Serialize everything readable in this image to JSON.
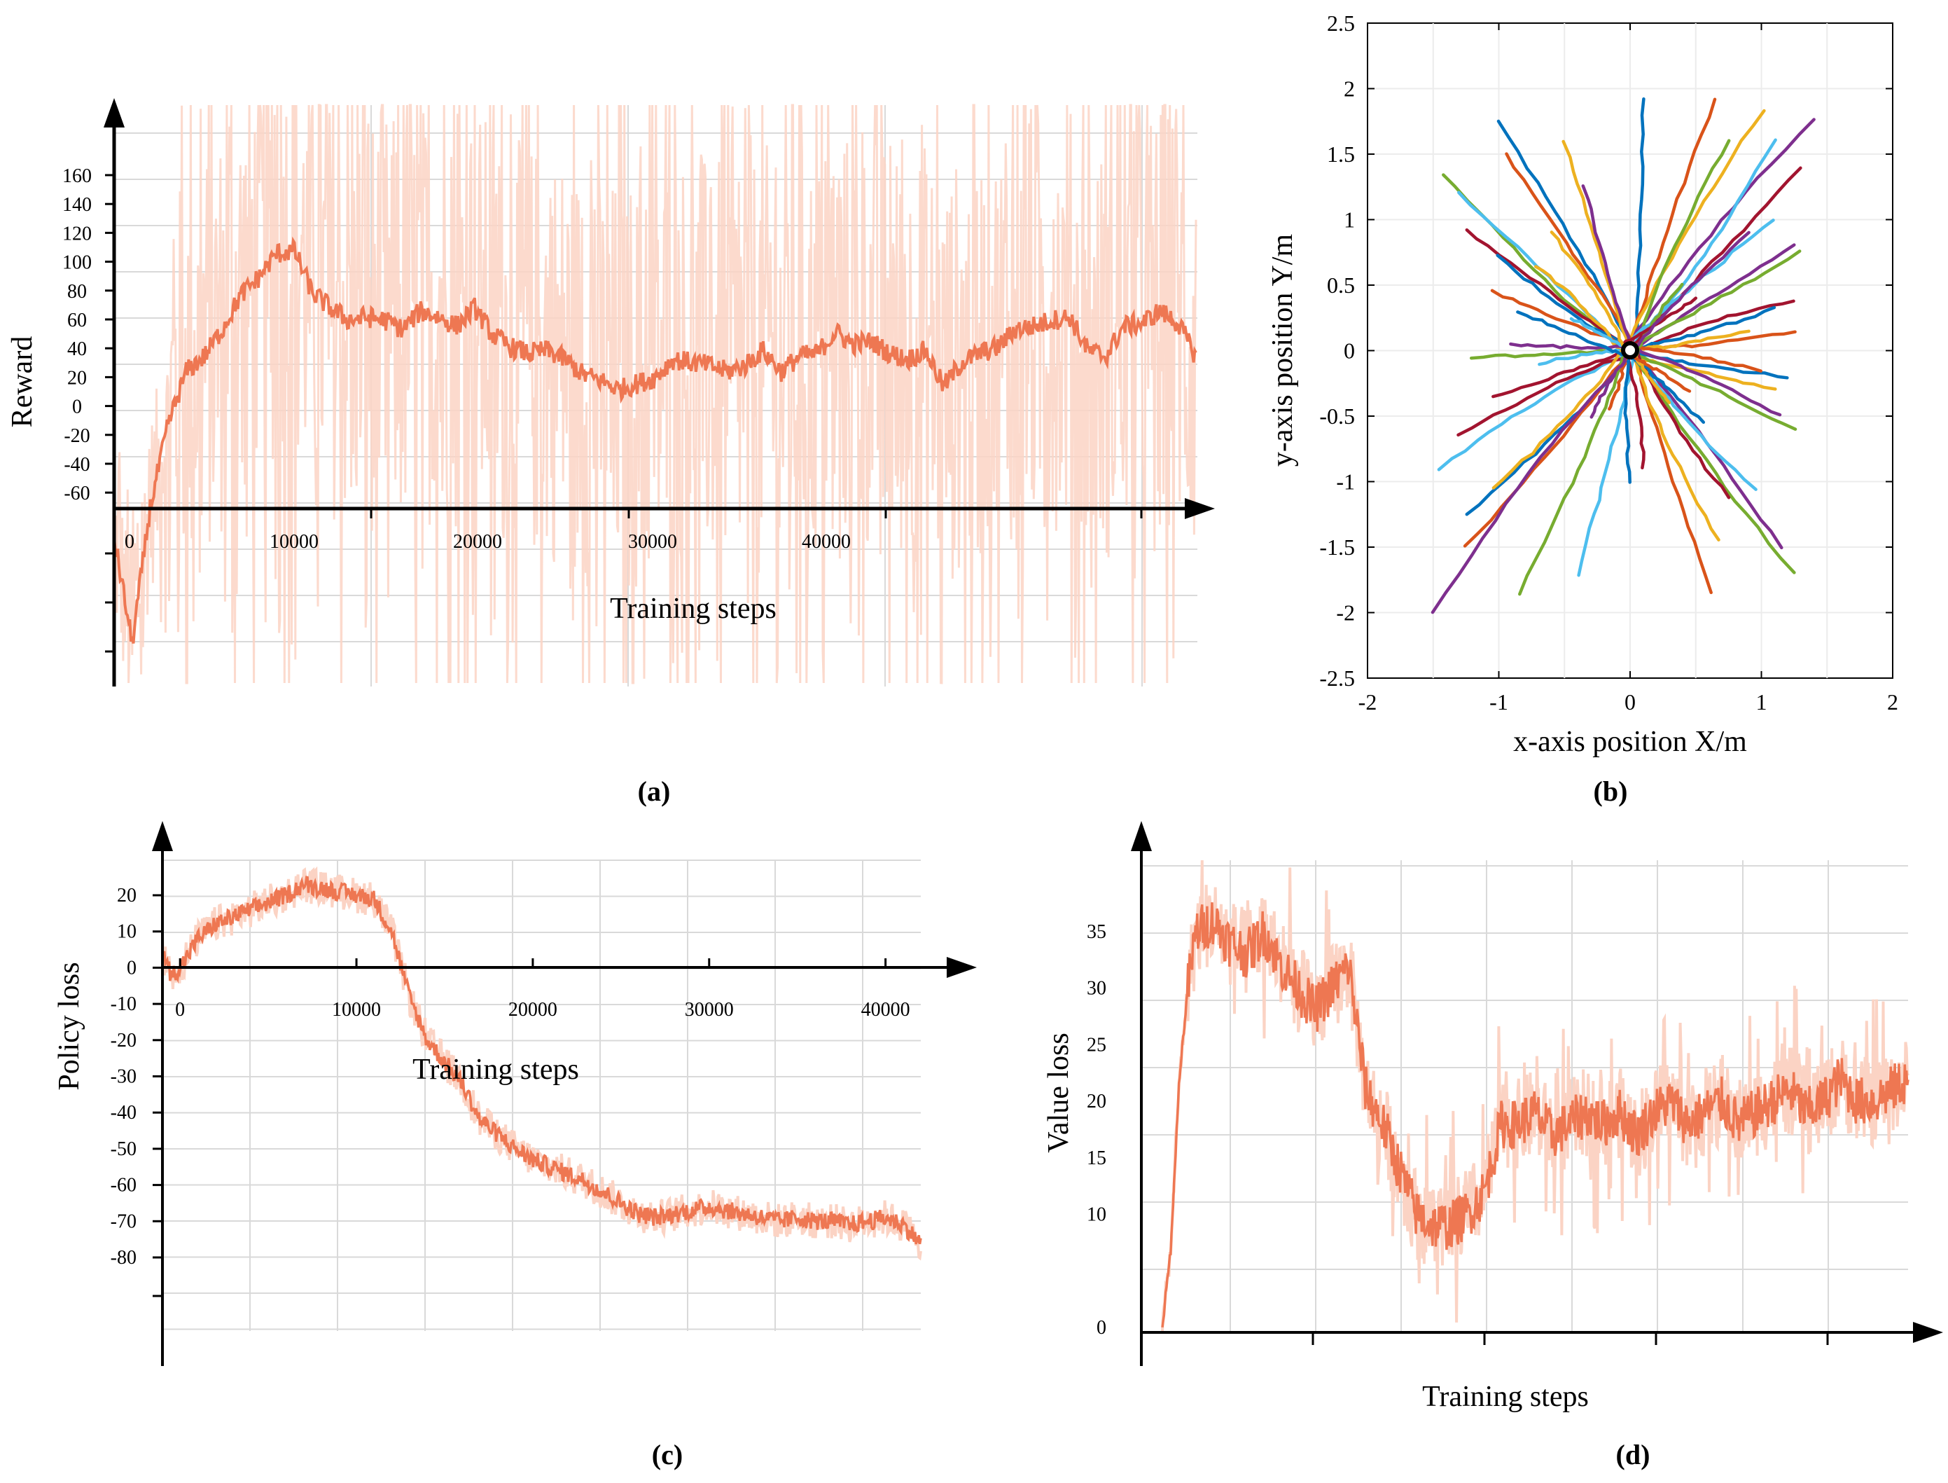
{
  "chart_data": [
    {
      "panel": "a",
      "type": "line",
      "caption": "(a)",
      "xlabel": "Training steps",
      "ylabel": "Reward",
      "x_ticks": [
        "0",
        "10000",
        "20000",
        "30000",
        "40000"
      ],
      "y_ticks": [
        "160",
        "140",
        "120",
        "100",
        "80",
        "60",
        "40",
        "20",
        "0",
        "-20",
        "-40",
        "-60"
      ],
      "xlim": [
        0,
        60000
      ],
      "series": [
        {
          "name": "smoothed reward",
          "color": "#ee7752",
          "x": [
            0,
            1000,
            2000,
            3000,
            4000,
            5000,
            6000,
            7000,
            8000,
            9000,
            10000,
            11000,
            12000,
            13000,
            14000,
            15000,
            16000,
            17000,
            18000,
            19000,
            20000,
            21000,
            22000,
            23000,
            24000,
            25000,
            26000,
            27000,
            28000,
            29000,
            30000,
            31000,
            32000,
            33000,
            34000,
            35000,
            36000,
            37000,
            38000,
            39000,
            40000,
            41000,
            42000,
            43000,
            44000,
            45000,
            46000,
            47000,
            48000,
            49000,
            50000,
            51000,
            52000,
            53000,
            54000,
            55000,
            56000,
            57000,
            58000,
            59000,
            60000
          ],
          "y": [
            -80,
            -150,
            -60,
            -5,
            30,
            40,
            58,
            80,
            92,
            108,
            110,
            82,
            72,
            64,
            66,
            64,
            58,
            70,
            66,
            60,
            72,
            54,
            46,
            42,
            44,
            38,
            28,
            24,
            18,
            22,
            26,
            38,
            36,
            34,
            30,
            34,
            44,
            30,
            40,
            42,
            56,
            48,
            50,
            42,
            38,
            44,
            20,
            36,
            42,
            46,
            58,
            60,
            64,
            66,
            44,
            40,
            60,
            62,
            70,
            62,
            40
          ]
        }
      ],
      "noise_color": "#fbd3c4"
    },
    {
      "panel": "b",
      "type": "line",
      "caption": "(b)",
      "xlabel": "x-axis position  X/m",
      "ylabel": "y-axis position  Y/m",
      "x_ticks": [
        "-2",
        "-1",
        "0",
        "1",
        "2"
      ],
      "y_ticks": [
        "2.5",
        "2",
        "1.5",
        "1",
        "0.5",
        "0",
        "-0.5",
        "-1",
        "-1.5",
        "-2",
        "-2.5"
      ],
      "xlim": [
        -2,
        2
      ],
      "ylim": [
        -2.5,
        2.5
      ],
      "origin_marker": [
        0,
        0
      ],
      "palette": [
        "#0072bd",
        "#d95319",
        "#edb120",
        "#7e2f8e",
        "#77ac30",
        "#4dbeee",
        "#a2142f"
      ],
      "trajectory_endpoints": [
        [
          0.1,
          1.93
        ],
        [
          0.65,
          1.92
        ],
        [
          1.02,
          1.84
        ],
        [
          1.4,
          1.76
        ],
        [
          0.75,
          1.6
        ],
        [
          1.1,
          1.6
        ],
        [
          1.3,
          1.4
        ],
        [
          -1.0,
          1.75
        ],
        [
          -0.95,
          1.5
        ],
        [
          -0.5,
          1.6
        ],
        [
          -0.35,
          1.25
        ],
        [
          -1.42,
          1.35
        ],
        [
          -1.3,
          1.2
        ],
        [
          -1.25,
          0.92
        ],
        [
          -1.0,
          0.72
        ],
        [
          -1.05,
          0.45
        ],
        [
          -0.72,
          0.65
        ],
        [
          1.25,
          0.8
        ],
        [
          1.3,
          0.75
        ],
        [
          1.1,
          1.0
        ],
        [
          1.25,
          0.38
        ],
        [
          1.1,
          0.32
        ],
        [
          1.25,
          0.15
        ],
        [
          0.9,
          0.15
        ],
        [
          -0.9,
          0.05
        ],
        [
          -1.2,
          -0.05
        ],
        [
          -0.7,
          -0.1
        ],
        [
          -1.05,
          -0.35
        ],
        [
          1.2,
          -0.2
        ],
        [
          1.0,
          -0.15
        ],
        [
          1.1,
          -0.3
        ],
        [
          1.15,
          -0.5
        ],
        [
          1.25,
          -0.6
        ],
        [
          -1.45,
          -0.9
        ],
        [
          -1.3,
          -0.65
        ],
        [
          -1.25,
          -1.25
        ],
        [
          -1.25,
          -1.5
        ],
        [
          -1.05,
          -1.05
        ],
        [
          -1.5,
          -2.0
        ],
        [
          -0.85,
          -1.85
        ],
        [
          -0.4,
          -1.72
        ],
        [
          0.1,
          -0.9
        ],
        [
          0.0,
          -1.0
        ],
        [
          0.62,
          -1.85
        ],
        [
          0.68,
          -1.45
        ],
        [
          1.15,
          -1.5
        ],
        [
          1.25,
          -1.7
        ],
        [
          0.95,
          -1.05
        ],
        [
          0.75,
          -1.12
        ],
        [
          0.55,
          -0.55
        ],
        [
          -0.15,
          -0.45
        ],
        [
          0.3,
          -0.4
        ],
        [
          -0.3,
          -0.5
        ],
        [
          0.4,
          0.5
        ],
        [
          -0.45,
          0.25
        ],
        [
          0.5,
          0.4
        ],
        [
          -0.85,
          0.3
        ],
        [
          0.45,
          -0.3
        ],
        [
          -0.6,
          0.9
        ],
        [
          0.9,
          0.9
        ]
      ]
    },
    {
      "panel": "c",
      "type": "line",
      "caption": "(c)",
      "xlabel": "Training steps",
      "ylabel": "Policy loss",
      "x_ticks": [
        "0",
        "10000",
        "20000",
        "30000",
        "40000"
      ],
      "y_ticks": [
        "20",
        "10",
        "0",
        "-10",
        "-20",
        "-30",
        "-40",
        "-50",
        "-60",
        "-70",
        "-80"
      ],
      "ylim": [
        -100,
        30
      ],
      "xlim": [
        -1000,
        42000
      ],
      "series": [
        {
          "name": "smoothed policy loss",
          "color": "#ee7752",
          "x": [
            -1000,
            -500,
            0,
            1000,
            2000,
            3000,
            4000,
            5000,
            6000,
            7000,
            8000,
            9000,
            10000,
            11000,
            12000,
            13000,
            14000,
            15000,
            16000,
            17000,
            18000,
            19000,
            20000,
            21000,
            22000,
            23000,
            24000,
            25000,
            26000,
            27000,
            28000,
            29000,
            30000,
            31000,
            32000,
            33000,
            34000,
            35000,
            36000,
            37000,
            38000,
            39000,
            40000,
            41000,
            42000
          ],
          "y": [
            4,
            -2,
            0,
            8,
            12,
            14,
            16,
            18,
            20,
            23,
            22,
            21,
            20,
            19,
            10,
            -8,
            -20,
            -26,
            -32,
            -42,
            -46,
            -50,
            -53,
            -55,
            -57,
            -59,
            -62,
            -65,
            -68,
            -69,
            -68,
            -67,
            -66,
            -67,
            -68,
            -69,
            -70,
            -69,
            -70,
            -70,
            -71,
            -70,
            -69,
            -71,
            -76
          ]
        }
      ]
    },
    {
      "panel": "d",
      "type": "line",
      "caption": "(d)",
      "xlabel": "Training steps",
      "ylabel": "Value loss",
      "y_ticks": [
        "35",
        "30",
        "25",
        "20",
        "15",
        "10",
        "0"
      ],
      "ylim": [
        0,
        40
      ],
      "xlim": [
        0,
        44000
      ],
      "series": [
        {
          "name": "smoothed value loss",
          "color": "#ee7752",
          "x": [
            0,
            500,
            1000,
            1500,
            2000,
            3000,
            4000,
            5000,
            6000,
            7000,
            8000,
            9000,
            10000,
            11000,
            12000,
            13000,
            14000,
            15000,
            16000,
            17000,
            18000,
            19000,
            20000,
            21000,
            22000,
            23000,
            24000,
            25000,
            26000,
            27000,
            28000,
            29000,
            30000,
            31000,
            32000,
            33000,
            34000,
            35000,
            36000,
            37000,
            38000,
            39000,
            40000,
            41000,
            42000,
            43000,
            44000
          ],
          "y": [
            0,
            7,
            22,
            30,
            35,
            36,
            34,
            33,
            35,
            32,
            30,
            28,
            30,
            32,
            21,
            18,
            14,
            10,
            9,
            9,
            10,
            12,
            18,
            18,
            19,
            17,
            18,
            19,
            18,
            19,
            17,
            19,
            20,
            18,
            19,
            20,
            18,
            19,
            20,
            21,
            19,
            20,
            22,
            20,
            20,
            21,
            22
          ]
        }
      ]
    }
  ]
}
